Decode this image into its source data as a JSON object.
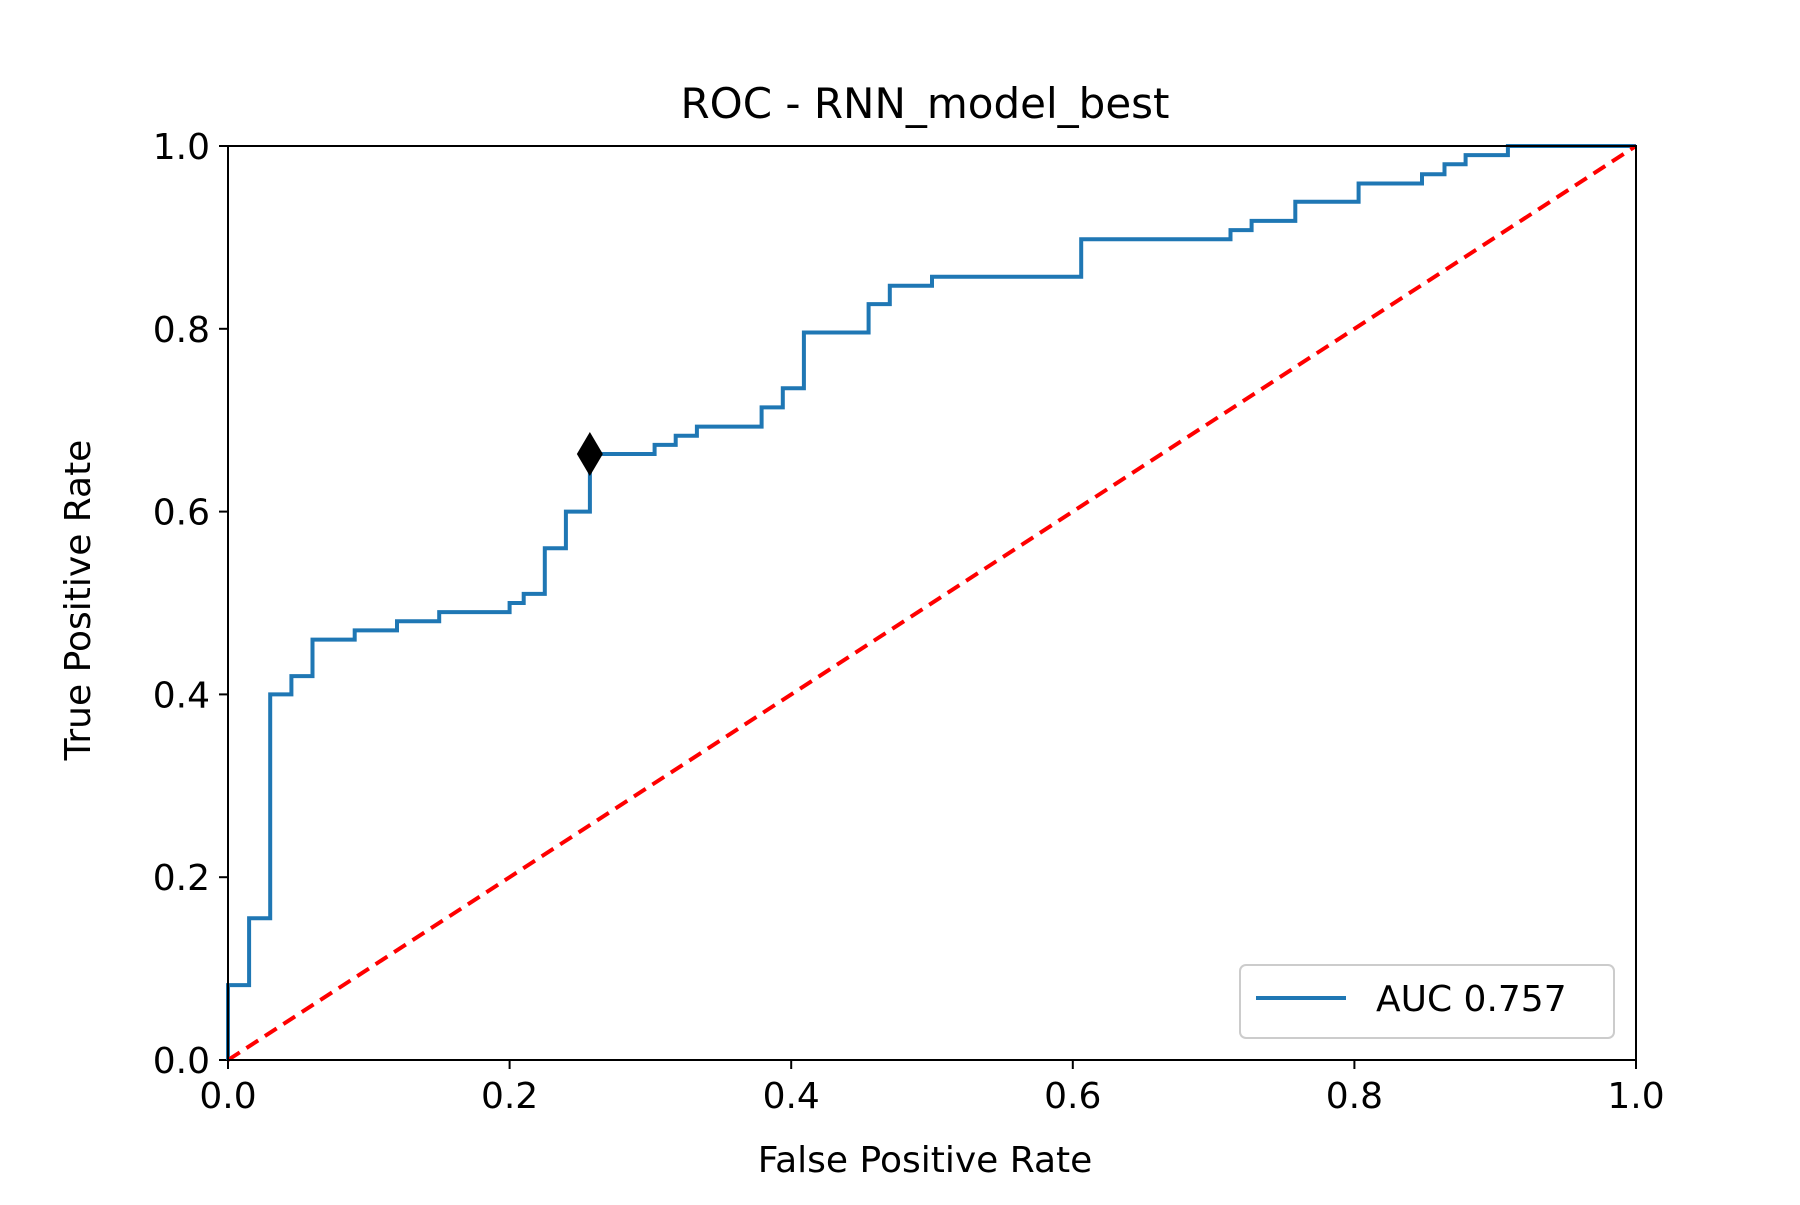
{
  "chart_data": {
    "type": "line",
    "title": "ROC - RNN_model_best",
    "xlabel": "False Positive Rate",
    "ylabel": "True Positive Rate",
    "xlim": [
      0.0,
      1.0
    ],
    "ylim": [
      0.0,
      1.0
    ],
    "xticks": [
      0.0,
      0.2,
      0.4,
      0.6,
      0.8,
      1.0
    ],
    "yticks": [
      0.0,
      0.2,
      0.4,
      0.6,
      0.8,
      1.0
    ],
    "xtick_labels": [
      "0.0",
      "0.2",
      "0.4",
      "0.6",
      "0.8",
      "1.0"
    ],
    "ytick_labels": [
      "0.0",
      "0.2",
      "0.4",
      "0.6",
      "0.8",
      "1.0"
    ],
    "grid": false,
    "legend_position": "lower-right",
    "series": [
      {
        "name": "AUC 0.757",
        "color": "#1f77b4",
        "style": "step",
        "x": [
          0.0,
          0.0,
          0.015,
          0.015,
          0.03,
          0.03,
          0.045,
          0.045,
          0.06,
          0.06,
          0.09,
          0.09,
          0.12,
          0.12,
          0.15,
          0.15,
          0.2,
          0.2,
          0.21,
          0.21,
          0.225,
          0.225,
          0.24,
          0.24,
          0.257,
          0.257,
          0.303,
          0.303,
          0.318,
          0.318,
          0.333,
          0.333,
          0.379,
          0.379,
          0.394,
          0.394,
          0.409,
          0.409,
          0.455,
          0.455,
          0.47,
          0.47,
          0.5,
          0.5,
          0.606,
          0.606,
          0.712,
          0.712,
          0.727,
          0.727,
          0.758,
          0.758,
          0.803,
          0.803,
          0.848,
          0.848,
          0.864,
          0.864,
          0.879,
          0.879,
          0.909,
          0.909,
          1.0
        ],
        "y": [
          0.0,
          0.082,
          0.082,
          0.155,
          0.155,
          0.4,
          0.4,
          0.42,
          0.42,
          0.46,
          0.46,
          0.47,
          0.47,
          0.48,
          0.48,
          0.49,
          0.49,
          0.5,
          0.5,
          0.51,
          0.51,
          0.56,
          0.56,
          0.6,
          0.6,
          0.663,
          0.663,
          0.673,
          0.673,
          0.683,
          0.683,
          0.693,
          0.693,
          0.714,
          0.714,
          0.735,
          0.735,
          0.796,
          0.796,
          0.827,
          0.827,
          0.847,
          0.847,
          0.857,
          0.857,
          0.898,
          0.898,
          0.908,
          0.908,
          0.918,
          0.918,
          0.939,
          0.939,
          0.959,
          0.959,
          0.969,
          0.969,
          0.98,
          0.98,
          0.99,
          0.99,
          1.0,
          1.0
        ]
      }
    ],
    "reference_line": {
      "x": [
        0.0,
        1.0
      ],
      "y": [
        0.0,
        1.0
      ],
      "color": "#ff0000",
      "style": "dashed"
    },
    "marker": {
      "x": 0.257,
      "y": 0.663,
      "shape": "diamond",
      "color": "#000000"
    }
  }
}
